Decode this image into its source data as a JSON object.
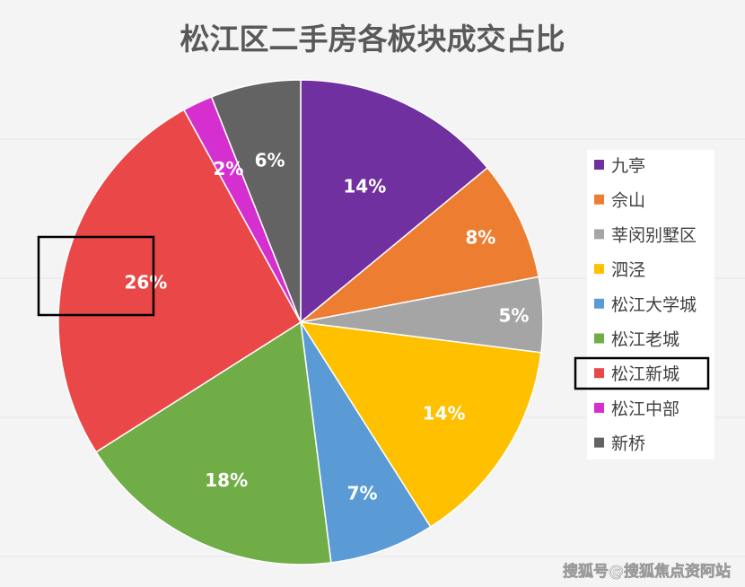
{
  "chart_data": {
    "type": "pie",
    "title": "松江区二手房各板块成交占比",
    "categories": [
      "九亭",
      "佘山",
      "莘闵别墅区",
      "泗泾",
      "松江大学城",
      "松江老城",
      "松江新城",
      "松江中部",
      "新桥"
    ],
    "values": [
      14,
      8,
      5,
      14,
      7,
      18,
      26,
      2,
      6
    ],
    "labels": [
      "14%",
      "8%",
      "5%",
      "14%",
      "7%",
      "18%",
      "26%",
      "2%",
      "6%"
    ],
    "colors": [
      "#7030a0",
      "#ed7d31",
      "#a5a5a5",
      "#ffc000",
      "#5b9bd5",
      "#70ad47",
      "#ea4848",
      "#d62fd0",
      "#636363"
    ],
    "legend_position": "right",
    "highlighted_category": "松江新城"
  },
  "watermark": "搜狐号@搜狐焦点资阿站"
}
